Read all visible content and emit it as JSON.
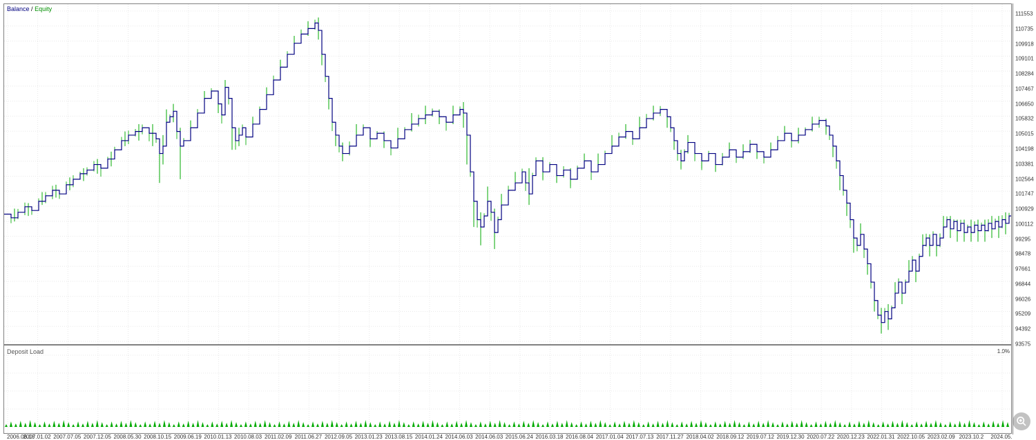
{
  "legend": {
    "balance": "Balance",
    "separator": "/",
    "equity": "Equity"
  },
  "sub_label": "Deposit Load",
  "sub_right": "1.0%",
  "colors": {
    "balance": "#000080",
    "equity": "#00aa00",
    "grid": "#e8e8e8",
    "border": "#808080",
    "background": "#ffffff",
    "deposit": "#00aa00"
  },
  "y_axis": {
    "min": 93575,
    "max": 111553,
    "ticks": [
      111553,
      110735,
      109918,
      109101,
      108284,
      107467,
      106650,
      105832,
      105015,
      104198,
      103381,
      102564,
      101747,
      100929,
      100112,
      99295,
      98478,
      97661,
      96844,
      96026,
      95209,
      94392,
      93575
    ]
  },
  "x_axis": {
    "labels": [
      "2006.06.16",
      "2007.01.02",
      "2007.07.05",
      "2007.12.05",
      "2008.05.30",
      "2008.10.15",
      "2009.06.19",
      "2010.01.13",
      "2010.08.03",
      "2011.02.09",
      "2011.06.27",
      "2012.09.05",
      "2013.01.23",
      "2013.08.15",
      "2014.01.24",
      "2014.06.03",
      "2014.06.03",
      "2015.06.24",
      "2016.03.18",
      "2016.08.04",
      "2017.01.04",
      "2017.07.13",
      "2017.11.27",
      "2018.04.02",
      "2018.09.12",
      "2019.07.12",
      "2019.12.30",
      "2020.07.22",
      "2020.12.23",
      "2022.01.31",
      "2022.10.05",
      "2023.02.09",
      "2023.10.2",
      "2024.05."
    ]
  },
  "balance_series": [
    [
      0,
      100500
    ],
    [
      10,
      100300
    ],
    [
      20,
      100600
    ],
    [
      30,
      100900
    ],
    [
      40,
      100700
    ],
    [
      50,
      101200
    ],
    [
      60,
      101500
    ],
    [
      70,
      101800
    ],
    [
      80,
      101600
    ],
    [
      90,
      102100
    ],
    [
      100,
      102400
    ],
    [
      110,
      102700
    ],
    [
      120,
      102900
    ],
    [
      130,
      103200
    ],
    [
      140,
      103000
    ],
    [
      150,
      103500
    ],
    [
      160,
      104000
    ],
    [
      170,
      104500
    ],
    [
      180,
      104800
    ],
    [
      190,
      105000
    ],
    [
      200,
      105200
    ],
    [
      210,
      104900
    ],
    [
      220,
      104600
    ],
    [
      225,
      103800
    ],
    [
      230,
      104200
    ],
    [
      235,
      105500
    ],
    [
      240,
      105800
    ],
    [
      245,
      106100
    ],
    [
      250,
      105000
    ],
    [
      255,
      104200
    ],
    [
      260,
      104500
    ],
    [
      270,
      105200
    ],
    [
      280,
      106000
    ],
    [
      290,
      106800
    ],
    [
      300,
      107200
    ],
    [
      310,
      106500
    ],
    [
      315,
      105900
    ],
    [
      320,
      107400
    ],
    [
      325,
      106800
    ],
    [
      330,
      105200
    ],
    [
      335,
      104500
    ],
    [
      340,
      104800
    ],
    [
      345,
      105200
    ],
    [
      350,
      104700
    ],
    [
      360,
      105400
    ],
    [
      370,
      106200
    ],
    [
      380,
      107000
    ],
    [
      390,
      107800
    ],
    [
      400,
      108500
    ],
    [
      410,
      109200
    ],
    [
      420,
      109800
    ],
    [
      430,
      110300
    ],
    [
      440,
      110600
    ],
    [
      450,
      110900
    ],
    [
      455,
      110500
    ],
    [
      460,
      109200
    ],
    [
      465,
      108000
    ],
    [
      470,
      106800
    ],
    [
      475,
      105500
    ],
    [
      480,
      104800
    ],
    [
      485,
      104200
    ],
    [
      490,
      103800
    ],
    [
      500,
      104200
    ],
    [
      510,
      104800
    ],
    [
      520,
      105200
    ],
    [
      530,
      104600
    ],
    [
      540,
      104900
    ],
    [
      550,
      104500
    ],
    [
      560,
      104100
    ],
    [
      570,
      104600
    ],
    [
      580,
      105100
    ],
    [
      590,
      105400
    ],
    [
      600,
      105700
    ],
    [
      610,
      105900
    ],
    [
      620,
      106100
    ],
    [
      630,
      105800
    ],
    [
      640,
      105500
    ],
    [
      650,
      105900
    ],
    [
      660,
      106200
    ],
    [
      665,
      106000
    ],
    [
      670,
      104800
    ],
    [
      675,
      102800
    ],
    [
      680,
      101200
    ],
    [
      685,
      100200
    ],
    [
      690,
      99800
    ],
    [
      695,
      100400
    ],
    [
      700,
      101200
    ],
    [
      705,
      100600
    ],
    [
      710,
      99500
    ],
    [
      715,
      100200
    ],
    [
      720,
      101000
    ],
    [
      730,
      101800
    ],
    [
      740,
      102200
    ],
    [
      750,
      102800
    ],
    [
      755,
      102200
    ],
    [
      760,
      101600
    ],
    [
      765,
      102600
    ],
    [
      770,
      103400
    ],
    [
      780,
      102800
    ],
    [
      790,
      103200
    ],
    [
      800,
      102600
    ],
    [
      810,
      102900
    ],
    [
      820,
      102400
    ],
    [
      830,
      103000
    ],
    [
      840,
      103400
    ],
    [
      850,
      102800
    ],
    [
      860,
      103200
    ],
    [
      870,
      103800
    ],
    [
      880,
      104200
    ],
    [
      890,
      104700
    ],
    [
      900,
      105000
    ],
    [
      910,
      104600
    ],
    [
      920,
      105200
    ],
    [
      930,
      105700
    ],
    [
      940,
      106000
    ],
    [
      950,
      106200
    ],
    [
      960,
      105800
    ],
    [
      965,
      105200
    ],
    [
      970,
      104500
    ],
    [
      975,
      103800
    ],
    [
      980,
      103400
    ],
    [
      985,
      103900
    ],
    [
      990,
      104400
    ],
    [
      1000,
      103800
    ],
    [
      1010,
      103400
    ],
    [
      1020,
      103800
    ],
    [
      1030,
      103200
    ],
    [
      1040,
      103600
    ],
    [
      1050,
      104000
    ],
    [
      1060,
      103600
    ],
    [
      1070,
      103900
    ],
    [
      1080,
      104300
    ],
    [
      1090,
      103900
    ],
    [
      1100,
      103600
    ],
    [
      1110,
      104000
    ],
    [
      1120,
      104500
    ],
    [
      1130,
      104900
    ],
    [
      1140,
      104500
    ],
    [
      1150,
      104800
    ],
    [
      1160,
      105100
    ],
    [
      1170,
      105400
    ],
    [
      1180,
      105600
    ],
    [
      1190,
      105300
    ],
    [
      1195,
      104800
    ],
    [
      1200,
      104200
    ],
    [
      1205,
      103400
    ],
    [
      1210,
      102600
    ],
    [
      1215,
      101800
    ],
    [
      1220,
      101100
    ],
    [
      1225,
      100200
    ],
    [
      1230,
      99200
    ],
    [
      1235,
      98800
    ],
    [
      1240,
      99400
    ],
    [
      1245,
      98600
    ],
    [
      1250,
      97800
    ],
    [
      1255,
      96800
    ],
    [
      1260,
      95800
    ],
    [
      1265,
      95000
    ],
    [
      1270,
      94600
    ],
    [
      1275,
      95200
    ],
    [
      1280,
      94800
    ],
    [
      1285,
      95400
    ],
    [
      1290,
      96200
    ],
    [
      1295,
      96800
    ],
    [
      1300,
      96200
    ],
    [
      1305,
      96800
    ],
    [
      1310,
      97400
    ],
    [
      1315,
      98000
    ],
    [
      1320,
      97400
    ],
    [
      1325,
      98200
    ],
    [
      1330,
      98800
    ],
    [
      1335,
      99200
    ],
    [
      1340,
      98800
    ],
    [
      1345,
      99400
    ],
    [
      1350,
      98800
    ],
    [
      1355,
      99200
    ],
    [
      1360,
      99800
    ],
    [
      1365,
      100200
    ],
    [
      1370,
      99700
    ],
    [
      1375,
      100100
    ],
    [
      1380,
      99600
    ],
    [
      1385,
      100000
    ],
    [
      1390,
      99500
    ],
    [
      1395,
      99800
    ],
    [
      1400,
      99500
    ],
    [
      1405,
      99900
    ],
    [
      1410,
      99600
    ],
    [
      1415,
      99900
    ],
    [
      1420,
      99600
    ],
    [
      1425,
      100000
    ],
    [
      1430,
      99700
    ],
    [
      1435,
      100100
    ],
    [
      1440,
      99800
    ],
    [
      1445,
      100200
    ],
    [
      1450,
      100000
    ],
    [
      1455,
      100400
    ],
    [
      1460,
      100200
    ]
  ],
  "equity_spikes": [
    [
      15,
      100100,
      100800
    ],
    [
      35,
      100400,
      101100
    ],
    [
      55,
      101000,
      101700
    ],
    [
      75,
      101400,
      102100
    ],
    [
      95,
      101800,
      102500
    ],
    [
      115,
      102300,
      103000
    ],
    [
      135,
      102700,
      103500
    ],
    [
      155,
      103100,
      103900
    ],
    [
      175,
      104200,
      105000
    ],
    [
      195,
      104500,
      105400
    ],
    [
      215,
      104200,
      105400
    ],
    [
      225,
      102200,
      104200
    ],
    [
      235,
      104800,
      106200
    ],
    [
      245,
      105500,
      106500
    ],
    [
      255,
      102400,
      105200
    ],
    [
      230,
      103200,
      104800
    ],
    [
      270,
      104800,
      105600
    ],
    [
      290,
      106200,
      107200
    ],
    [
      310,
      106000,
      107000
    ],
    [
      320,
      106800,
      107800
    ],
    [
      330,
      104000,
      105800
    ],
    [
      340,
      104200,
      105200
    ],
    [
      360,
      105000,
      105800
    ],
    [
      380,
      106600,
      107400
    ],
    [
      400,
      108100,
      108900
    ],
    [
      420,
      109400,
      110200
    ],
    [
      440,
      110200,
      111000
    ],
    [
      455,
      110000,
      111200
    ],
    [
      460,
      108600,
      109800
    ],
    [
      470,
      106200,
      107400
    ],
    [
      480,
      104200,
      105400
    ],
    [
      490,
      103400,
      104400
    ],
    [
      510,
      104400,
      105400
    ],
    [
      530,
      104200,
      105200
    ],
    [
      550,
      104100,
      105000
    ],
    [
      570,
      104200,
      105200
    ],
    [
      590,
      105000,
      106000
    ],
    [
      610,
      105400,
      106400
    ],
    [
      630,
      105400,
      106200
    ],
    [
      650,
      105400,
      106400
    ],
    [
      665,
      105200,
      106600
    ],
    [
      670,
      103200,
      105400
    ],
    [
      680,
      99800,
      102200
    ],
    [
      690,
      98800,
      100600
    ],
    [
      700,
      100400,
      102000
    ],
    [
      710,
      98600,
      100800
    ],
    [
      720,
      100400,
      101600
    ],
    [
      740,
      101800,
      102800
    ],
    [
      760,
      101000,
      103000
    ],
    [
      780,
      102400,
      103600
    ],
    [
      800,
      102200,
      103200
    ],
    [
      820,
      102000,
      103000
    ],
    [
      840,
      103000,
      103800
    ],
    [
      860,
      102800,
      103800
    ],
    [
      880,
      103800,
      104800
    ],
    [
      900,
      104600,
      105400
    ],
    [
      920,
      104800,
      105800
    ],
    [
      940,
      105600,
      106400
    ],
    [
      960,
      105200,
      106200
    ],
    [
      970,
      104000,
      105000
    ],
    [
      980,
      103000,
      104000
    ],
    [
      990,
      103800,
      104800
    ],
    [
      1010,
      103000,
      103800
    ],
    [
      1030,
      102800,
      103600
    ],
    [
      1050,
      103600,
      104400
    ],
    [
      1070,
      103500,
      104300
    ],
    [
      1090,
      103500,
      104300
    ],
    [
      1110,
      103600,
      104400
    ],
    [
      1130,
      104500,
      105300
    ],
    [
      1150,
      104400,
      105200
    ],
    [
      1170,
      105000,
      105800
    ],
    [
      1190,
      104900,
      105700
    ],
    [
      1200,
      103600,
      104800
    ],
    [
      1210,
      101800,
      103200
    ],
    [
      1220,
      100400,
      101800
    ],
    [
      1230,
      98400,
      100000
    ],
    [
      1240,
      98800,
      100000
    ],
    [
      1250,
      97200,
      98400
    ],
    [
      1260,
      95200,
      96400
    ],
    [
      1270,
      94000,
      95400
    ],
    [
      1280,
      94200,
      95600
    ],
    [
      1290,
      95600,
      96800
    ],
    [
      1300,
      95600,
      96800
    ],
    [
      1310,
      96800,
      98000
    ],
    [
      1320,
      96800,
      98000
    ],
    [
      1330,
      98200,
      99400
    ],
    [
      1340,
      98200,
      99400
    ],
    [
      1350,
      98200,
      99400
    ],
    [
      1360,
      99200,
      100400
    ],
    [
      1370,
      99200,
      100400
    ],
    [
      1380,
      99000,
      100200
    ],
    [
      1390,
      99000,
      100200
    ],
    [
      1400,
      99000,
      100200
    ],
    [
      1410,
      99000,
      100200
    ],
    [
      1420,
      99000,
      100200
    ],
    [
      1430,
      99200,
      100400
    ],
    [
      1440,
      99200,
      100400
    ],
    [
      1450,
      99400,
      100600
    ],
    [
      1460,
      99600,
      100800
    ]
  ],
  "deposit_bars_count": 210,
  "chart": {
    "main_width": 1460,
    "main_height": 495,
    "sub_height": 128
  }
}
